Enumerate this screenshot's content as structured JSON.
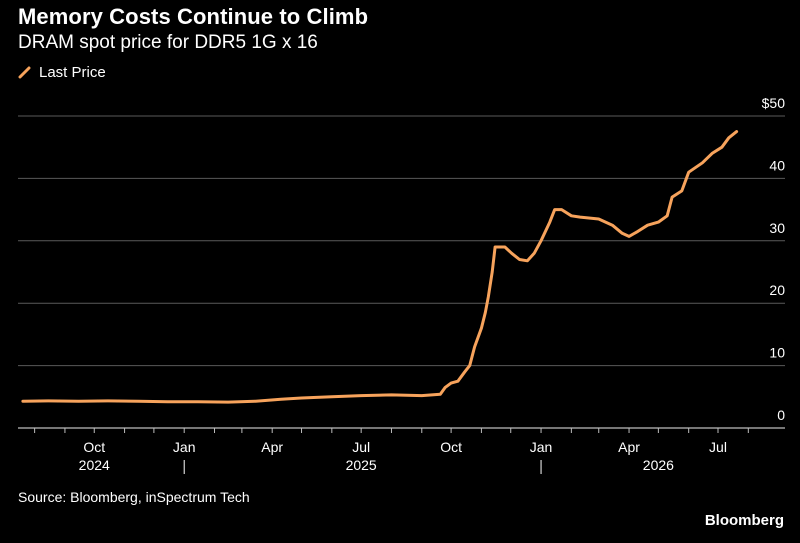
{
  "colors": {
    "background": "#000000",
    "line": "#F7A35C",
    "grid": "#5a5a5a",
    "text": "#ffffff"
  },
  "chart_data": {
    "type": "line",
    "title": "Memory Costs Continue to Climb",
    "subtitle": "DRAM spot price for DDR5 1G x 16",
    "legend": [
      "Last Price"
    ],
    "legend_position": "top-left",
    "y_axis_position": "right",
    "ylim": [
      0,
      50
    ],
    "yticks": [
      0,
      10,
      20,
      30,
      40,
      50
    ],
    "ytick_labels": [
      "0",
      "10",
      "20",
      "30",
      "40",
      "$50"
    ],
    "xlim": [
      "2024-07-15",
      "2026-08-15"
    ],
    "xticks": [
      {
        "date": "2024-10-01",
        "label": "Oct"
      },
      {
        "date": "2025-01-01",
        "label": "Jan"
      },
      {
        "date": "2025-04-01",
        "label": "Apr"
      },
      {
        "date": "2025-07-01",
        "label": "Jul"
      },
      {
        "date": "2025-10-01",
        "label": "Oct"
      },
      {
        "date": "2026-01-01",
        "label": "Jan"
      },
      {
        "date": "2026-04-01",
        "label": "Apr"
      },
      {
        "date": "2026-07-01",
        "label": "Jul"
      }
    ],
    "years": [
      {
        "label": "2024",
        "date": "2024-10-01"
      },
      {
        "label": "2025",
        "date": "2025-07-01"
      },
      {
        "label": "2026",
        "date": "2026-05-01"
      }
    ],
    "year_dividers": [
      "2025-01-01",
      "2026-01-01"
    ],
    "grid": true,
    "series": [
      {
        "name": "Last Price",
        "points": [
          [
            "2024-07-20",
            4.3
          ],
          [
            "2024-08-15",
            4.35
          ],
          [
            "2024-09-15",
            4.3
          ],
          [
            "2024-10-15",
            4.35
          ],
          [
            "2024-11-15",
            4.3
          ],
          [
            "2024-12-15",
            4.2
          ],
          [
            "2025-01-15",
            4.2
          ],
          [
            "2025-02-15",
            4.15
          ],
          [
            "2025-03-15",
            4.3
          ],
          [
            "2025-04-10",
            4.6
          ],
          [
            "2025-05-01",
            4.8
          ],
          [
            "2025-06-01",
            5.0
          ],
          [
            "2025-07-01",
            5.2
          ],
          [
            "2025-08-01",
            5.3
          ],
          [
            "2025-09-01",
            5.2
          ],
          [
            "2025-09-20",
            5.4
          ],
          [
            "2025-09-25",
            6.5
          ],
          [
            "2025-10-01",
            7.2
          ],
          [
            "2025-10-08",
            7.5
          ],
          [
            "2025-10-15",
            9.0
          ],
          [
            "2025-10-20",
            10.0
          ],
          [
            "2025-10-25",
            13.0
          ],
          [
            "2025-11-01",
            16.0
          ],
          [
            "2025-11-05",
            18.5
          ],
          [
            "2025-11-08",
            21.0
          ],
          [
            "2025-11-12",
            25.0
          ],
          [
            "2025-11-15",
            29.0
          ],
          [
            "2025-11-25",
            29.0
          ],
          [
            "2025-12-02",
            28.0
          ],
          [
            "2025-12-10",
            27.0
          ],
          [
            "2025-12-18",
            26.8
          ],
          [
            "2025-12-25",
            28.0
          ],
          [
            "2026-01-01",
            30.0
          ],
          [
            "2026-01-10",
            33.0
          ],
          [
            "2026-01-15",
            35.0
          ],
          [
            "2026-01-22",
            35.0
          ],
          [
            "2026-02-01",
            34.0
          ],
          [
            "2026-02-10",
            33.8
          ],
          [
            "2026-03-01",
            33.5
          ],
          [
            "2026-03-15",
            32.5
          ],
          [
            "2026-03-25",
            31.2
          ],
          [
            "2026-04-01",
            30.7
          ],
          [
            "2026-04-10",
            31.5
          ],
          [
            "2026-04-20",
            32.5
          ],
          [
            "2026-05-01",
            33.0
          ],
          [
            "2026-05-10",
            34.0
          ],
          [
            "2026-05-15",
            37.0
          ],
          [
            "2026-05-25",
            38.0
          ],
          [
            "2026-06-01",
            41.0
          ],
          [
            "2026-06-15",
            42.5
          ],
          [
            "2026-06-25",
            44.0
          ],
          [
            "2026-07-05",
            45.0
          ],
          [
            "2026-07-12",
            46.5
          ],
          [
            "2026-07-20",
            47.5
          ]
        ]
      }
    ]
  },
  "footer": {
    "source": "Source: Bloomberg, inSpectrum Tech",
    "brand": "Bloomberg"
  }
}
